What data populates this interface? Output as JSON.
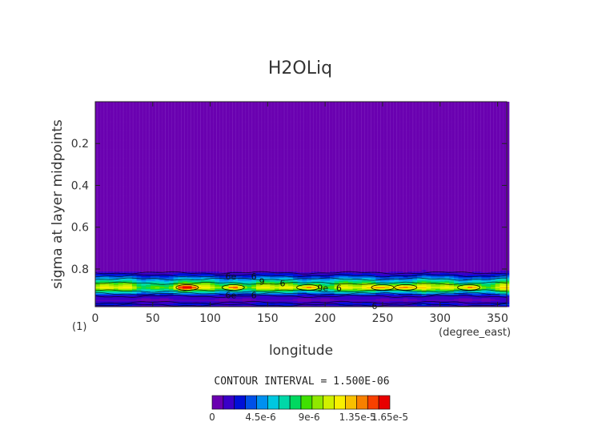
{
  "chart_data": {
    "type": "heatmap",
    "title": "H2OLiq",
    "xlabel": "longitude",
    "ylabel": "sigma at layer midpoints",
    "x_unit": "(degree_east)",
    "corner_label": "(1)",
    "xlim": [
      0,
      358
    ],
    "ylim": [
      0.98,
      0.0
    ],
    "x_ticks": [
      "0",
      "50",
      "100",
      "150",
      "200",
      "250",
      "300",
      "350"
    ],
    "y_ticks": [
      "0.2",
      "0.4",
      "0.6",
      "0.8"
    ],
    "x_tick_values": [
      0,
      50,
      100,
      150,
      200,
      250,
      300,
      350
    ],
    "y_tick_values": [
      0.2,
      0.4,
      0.6,
      0.8
    ],
    "contour_interval_text": "CONTOUR INTERVAL = 1.500E-06",
    "colorbar": {
      "min": 0,
      "max": 1.65e-05,
      "labels": [
        "0",
        "4.5e-6",
        "9e-6",
        "1.35e-5",
        "1.65e-5"
      ],
      "label_values": [
        0,
        4.5e-06,
        9e-06,
        1.35e-05,
        1.65e-05
      ],
      "colors": [
        "#6a00b0",
        "#3a00c8",
        "#0010d8",
        "#0050e8",
        "#0090f0",
        "#00c8e0",
        "#00d8a8",
        "#00d860",
        "#40e000",
        "#90e800",
        "#d0f000",
        "#f8f000",
        "#f8c000",
        "#f88000",
        "#f84000",
        "#e80000"
      ]
    },
    "profile": {
      "sigma": [
        0.0,
        0.81,
        0.83,
        0.85,
        0.87,
        0.89,
        0.91,
        0.93,
        0.95,
        0.97,
        0.98
      ],
      "values": [
        0,
        1e-06,
        3e-06,
        6e-06,
        9.5e-06,
        1.2e-05,
        7e-06,
        2e-06,
        1e-06,
        3e-06,
        1e-06
      ]
    },
    "hotspots_longitude": [
      80,
      120,
      185,
      250,
      270,
      325
    ],
    "contour_labels": [
      {
        "text": "6e",
        "lon": 118,
        "sigma": 0.835
      },
      {
        "text": "6",
        "lon": 138,
        "sigma": 0.835
      },
      {
        "text": "9",
        "lon": 145,
        "sigma": 0.86
      },
      {
        "text": "6",
        "lon": 163,
        "sigma": 0.868
      },
      {
        "text": "9e",
        "lon": 198,
        "sigma": 0.89
      },
      {
        "text": "6",
        "lon": 212,
        "sigma": 0.89
      },
      {
        "text": "6e",
        "lon": 118,
        "sigma": 0.925
      },
      {
        "text": "6",
        "lon": 138,
        "sigma": 0.925
      },
      {
        "text": "6",
        "lon": 243,
        "sigma": 0.977
      }
    ]
  }
}
